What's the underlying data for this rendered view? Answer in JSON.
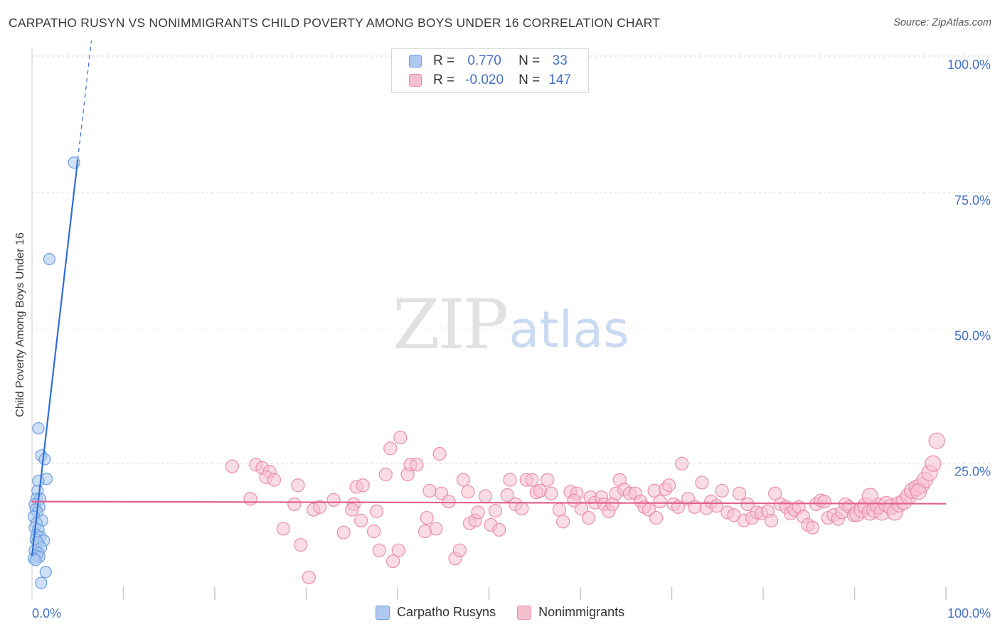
{
  "title": "CARPATHO RUSYN VS NONIMMIGRANTS CHILD POVERTY AMONG BOYS UNDER 16 CORRELATION CHART",
  "source": "Source: ZipAtlas.com",
  "watermark": {
    "zip": "ZIP",
    "atlas": "atlas"
  },
  "legend": {
    "rows": [
      {
        "r_label": "R =",
        "r_value": "0.770",
        "n_label": "N =",
        "n_value": "33"
      },
      {
        "r_label": "R =",
        "r_value": "-0.020",
        "n_label": "N =",
        "n_value": "147"
      }
    ]
  },
  "bottom_legend": {
    "series1": "Carpatho Rusyns",
    "series2": "Nonimmigrants"
  },
  "colors": {
    "blue_fill": "#aec9f0",
    "blue_stroke": "#6d9ee0",
    "blue_line": "#2f6fd6",
    "pink_fill": "#f6bfd0",
    "pink_stroke": "#ea8eac",
    "pink_line": "#e0608a",
    "grid": "#dcdcdc",
    "tick_text": "#4472c4"
  },
  "chart_data": {
    "type": "scatter",
    "title": "CARPATHO RUSYN VS NONIMMIGRANTS CHILD POVERTY AMONG BOYS UNDER 16 CORRELATION CHART",
    "xlabel": "",
    "ylabel": "Child Poverty Among Boys Under 16",
    "xlim": [
      0,
      100
    ],
    "ylim": [
      0,
      100
    ],
    "x_tick_labels": [
      "0.0%",
      "100.0%"
    ],
    "y_tick_labels": [
      "25.0%",
      "50.0%",
      "75.0%",
      "100.0%"
    ],
    "y_ticks": [
      25,
      50,
      75,
      100
    ],
    "grid": true,
    "legend_position": "top-center",
    "series": [
      {
        "name": "Carpatho Rusyns",
        "r": 0.77,
        "n": 33,
        "trend": {
          "x0": 0.0,
          "y0": 8.0,
          "x1": 5.0,
          "y1": 81.0,
          "dash_to": {
            "x": 6.5,
            "y": 103.0
          }
        },
        "points": [
          [
            4.6,
            80.5
          ],
          [
            1.9,
            62.7
          ],
          [
            0.7,
            31.5
          ],
          [
            1.0,
            26.5
          ],
          [
            1.4,
            25.8
          ],
          [
            1.6,
            22.2
          ],
          [
            0.7,
            21.8
          ],
          [
            0.6,
            20.0
          ],
          [
            0.5,
            18.5
          ],
          [
            0.9,
            18.5
          ],
          [
            0.3,
            17.5
          ],
          [
            0.8,
            17.0
          ],
          [
            0.4,
            16.5
          ],
          [
            0.6,
            16.0
          ],
          [
            0.2,
            15.2
          ],
          [
            1.1,
            14.5
          ],
          [
            0.5,
            14.0
          ],
          [
            0.3,
            13.2
          ],
          [
            0.7,
            12.8
          ],
          [
            0.5,
            11.8
          ],
          [
            0.9,
            11.5
          ],
          [
            0.4,
            11.0
          ],
          [
            1.3,
            10.8
          ],
          [
            0.6,
            10.5
          ],
          [
            1.0,
            9.5
          ],
          [
            0.3,
            9.0
          ],
          [
            0.7,
            8.5
          ],
          [
            0.5,
            8.0
          ],
          [
            0.8,
            7.8
          ],
          [
            0.2,
            7.5
          ],
          [
            0.4,
            7.2
          ],
          [
            1.5,
            5.0
          ],
          [
            1.0,
            3.0
          ]
        ]
      },
      {
        "name": "Nonimmigrants",
        "r": -0.02,
        "n": 147,
        "trend": {
          "x0": 0.0,
          "y0": 18.0,
          "x1": 100.0,
          "y1": 17.6
        },
        "points": [
          [
            21.9,
            24.5
          ],
          [
            24.5,
            24.8
          ],
          [
            25.2,
            24.2
          ],
          [
            26.0,
            23.5
          ],
          [
            25.6,
            22.5
          ],
          [
            26.5,
            22.0
          ],
          [
            23.9,
            18.5
          ],
          [
            29.1,
            21.0
          ],
          [
            28.7,
            17.5
          ],
          [
            27.5,
            13.0
          ],
          [
            29.4,
            10.0
          ],
          [
            30.3,
            4.0
          ],
          [
            30.8,
            16.5
          ],
          [
            31.5,
            17.0
          ],
          [
            33.0,
            18.3
          ],
          [
            34.1,
            12.3
          ],
          [
            35.5,
            20.7
          ],
          [
            36.2,
            21.0
          ],
          [
            35.2,
            17.5
          ],
          [
            35.0,
            16.5
          ],
          [
            36.0,
            14.5
          ],
          [
            37.4,
            12.5
          ],
          [
            37.7,
            16.2
          ],
          [
            38.0,
            9.0
          ],
          [
            38.7,
            23.0
          ],
          [
            39.5,
            7.0
          ],
          [
            39.2,
            27.8
          ],
          [
            40.1,
            9.0
          ],
          [
            40.3,
            29.8
          ],
          [
            41.1,
            23.0
          ],
          [
            41.4,
            24.8
          ],
          [
            42.1,
            24.8
          ],
          [
            43.0,
            12.5
          ],
          [
            43.2,
            15.0
          ],
          [
            44.2,
            13.0
          ],
          [
            44.6,
            26.8
          ],
          [
            43.5,
            20.0
          ],
          [
            44.8,
            19.5
          ],
          [
            45.6,
            18.0
          ],
          [
            46.3,
            7.5
          ],
          [
            46.8,
            9.0
          ],
          [
            47.2,
            22.0
          ],
          [
            47.7,
            19.8
          ],
          [
            47.9,
            14.0
          ],
          [
            48.5,
            14.5
          ],
          [
            48.8,
            16.0
          ],
          [
            49.6,
            19.0
          ],
          [
            50.2,
            13.7
          ],
          [
            50.7,
            16.3
          ],
          [
            51.1,
            12.8
          ],
          [
            52.0,
            19.2
          ],
          [
            52.3,
            22.0
          ],
          [
            52.9,
            17.5
          ],
          [
            53.6,
            16.7
          ],
          [
            54.1,
            22.0
          ],
          [
            54.7,
            22.0
          ],
          [
            55.2,
            19.7
          ],
          [
            55.6,
            20.0
          ],
          [
            56.4,
            22.0
          ],
          [
            56.8,
            19.5
          ],
          [
            57.7,
            16.5
          ],
          [
            58.1,
            14.3
          ],
          [
            58.9,
            19.8
          ],
          [
            59.6,
            19.5
          ],
          [
            60.1,
            16.7
          ],
          [
            60.9,
            15.0
          ],
          [
            61.1,
            18.8
          ],
          [
            61.6,
            17.8
          ],
          [
            62.3,
            18.8
          ],
          [
            62.6,
            17.5
          ],
          [
            63.1,
            16.2
          ],
          [
            63.5,
            17.5
          ],
          [
            63.9,
            19.5
          ],
          [
            64.3,
            22.0
          ],
          [
            64.8,
            20.2
          ],
          [
            65.4,
            19.5
          ],
          [
            66.0,
            19.5
          ],
          [
            66.6,
            18.0
          ],
          [
            67.0,
            17.0
          ],
          [
            67.5,
            16.5
          ],
          [
            68.1,
            20.0
          ],
          [
            68.7,
            18.0
          ],
          [
            69.3,
            20.3
          ],
          [
            69.7,
            21.0
          ],
          [
            70.2,
            17.5
          ],
          [
            70.7,
            17.0
          ],
          [
            71.1,
            25.0
          ],
          [
            71.8,
            18.5
          ],
          [
            72.5,
            17.0
          ],
          [
            73.3,
            21.5
          ],
          [
            73.8,
            16.8
          ],
          [
            74.3,
            18.0
          ],
          [
            74.9,
            17.2
          ],
          [
            75.5,
            20.0
          ],
          [
            76.1,
            16.0
          ],
          [
            76.8,
            15.5
          ],
          [
            77.4,
            19.5
          ],
          [
            77.9,
            14.5
          ],
          [
            78.3,
            17.5
          ],
          [
            78.8,
            15.0
          ],
          [
            79.3,
            16.0
          ],
          [
            79.8,
            15.8
          ],
          [
            80.5,
            16.2
          ],
          [
            80.9,
            14.5
          ],
          [
            81.3,
            19.5
          ],
          [
            81.9,
            17.5
          ],
          [
            82.5,
            17.0
          ],
          [
            83.0,
            15.8
          ],
          [
            83.4,
            16.5
          ],
          [
            83.9,
            17.0
          ],
          [
            84.4,
            15.2
          ],
          [
            84.9,
            13.7
          ],
          [
            85.4,
            13.2
          ],
          [
            85.8,
            17.5
          ],
          [
            86.3,
            18.2
          ],
          [
            86.7,
            18.0
          ],
          [
            87.1,
            15.0
          ],
          [
            87.7,
            15.5
          ],
          [
            88.2,
            14.8
          ],
          [
            88.6,
            16.0
          ],
          [
            89.0,
            17.5
          ],
          [
            89.4,
            17.0
          ],
          [
            89.9,
            15.5
          ],
          [
            90.3,
            15.8
          ],
          [
            90.8,
            16.5
          ],
          [
            91.2,
            17.2
          ],
          [
            91.7,
            16.0
          ],
          [
            92.2,
            16.5
          ],
          [
            92.6,
            17.2
          ],
          [
            93.0,
            16.0
          ],
          [
            93.5,
            17.5
          ],
          [
            94.0,
            17.0
          ],
          [
            94.4,
            16.0
          ],
          [
            94.9,
            17.5
          ],
          [
            95.4,
            18.0
          ],
          [
            95.9,
            19.0
          ],
          [
            96.3,
            20.0
          ],
          [
            96.8,
            20.5
          ],
          [
            97.3,
            21.0
          ],
          [
            97.7,
            22.0
          ],
          [
            98.2,
            23.3
          ],
          [
            98.6,
            25.0
          ],
          [
            99.0,
            29.2
          ],
          [
            91.7,
            19.0
          ],
          [
            97.0,
            19.8
          ],
          [
            68.3,
            15.0
          ],
          [
            59.3,
            18.2
          ]
        ]
      }
    ]
  }
}
